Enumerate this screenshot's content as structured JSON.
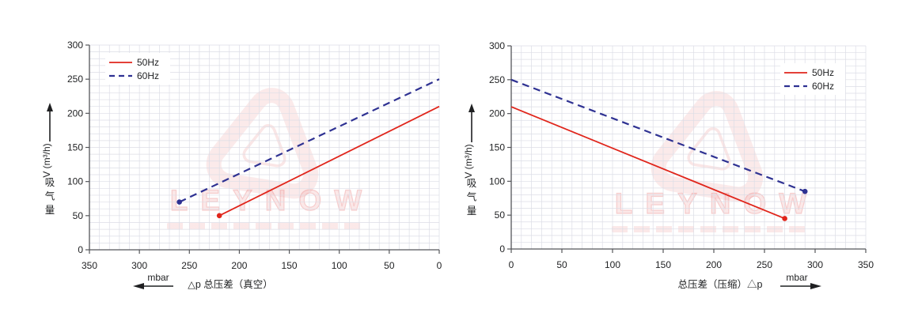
{
  "watermark": {
    "text": "LEYNOW"
  },
  "chart_data": [
    {
      "type": "line",
      "title": "",
      "ylabel": "吸气量 V (m³/h)",
      "ylabel_chars": "吸气量",
      "ylabel_unit": "V (m³/h)",
      "xlabel": "△p 总压差（真空）",
      "xlabel_unit": "mbar",
      "x_arrow_direction": "left",
      "xlim": [
        350,
        0
      ],
      "ylim": [
        0,
        300
      ],
      "x_ticks": [
        350,
        300,
        250,
        200,
        150,
        100,
        50,
        0
      ],
      "y_ticks": [
        0,
        50,
        100,
        150,
        200,
        250,
        300
      ],
      "grid_step": 10,
      "grid_on": true,
      "legend_position": "top-left",
      "colors": {
        "grid": "#dcdde6",
        "axis": "#55565a",
        "text": "#1f2022"
      },
      "series": [
        {
          "name": "50Hz",
          "color": "#e0251b",
          "style": "solid",
          "points": [
            [
              220,
              50
            ],
            [
              0,
              210
            ]
          ],
          "marker": [
            220,
            50
          ]
        },
        {
          "name": "60Hz",
          "color": "#2e3192",
          "style": "dashed",
          "points": [
            [
              260,
              70
            ],
            [
              0,
              250
            ]
          ],
          "marker": [
            260,
            70
          ]
        }
      ]
    },
    {
      "type": "line",
      "title": "",
      "ylabel": "吸气量 V (m³/h)",
      "ylabel_chars": "吸气量",
      "ylabel_unit": "V (m³/h)",
      "xlabel": "总压差（压缩）△p",
      "xlabel_unit": "mbar",
      "x_arrow_direction": "right",
      "xlim": [
        0,
        350
      ],
      "ylim": [
        0,
        300
      ],
      "x_ticks": [
        0,
        50,
        100,
        150,
        200,
        250,
        300,
        350
      ],
      "y_ticks": [
        0,
        50,
        100,
        150,
        200,
        250,
        300
      ],
      "grid_step": 10,
      "grid_on": true,
      "legend_position": "top-right",
      "colors": {
        "grid": "#dcdde6",
        "axis": "#55565a",
        "text": "#1f2022"
      },
      "series": [
        {
          "name": "50Hz",
          "color": "#e0251b",
          "style": "solid",
          "points": [
            [
              0,
              210
            ],
            [
              270,
              45
            ]
          ],
          "marker": [
            270,
            45
          ]
        },
        {
          "name": "60Hz",
          "color": "#2e3192",
          "style": "dashed",
          "points": [
            [
              0,
              250
            ],
            [
              290,
              85
            ]
          ],
          "marker": [
            290,
            85
          ]
        }
      ]
    }
  ]
}
